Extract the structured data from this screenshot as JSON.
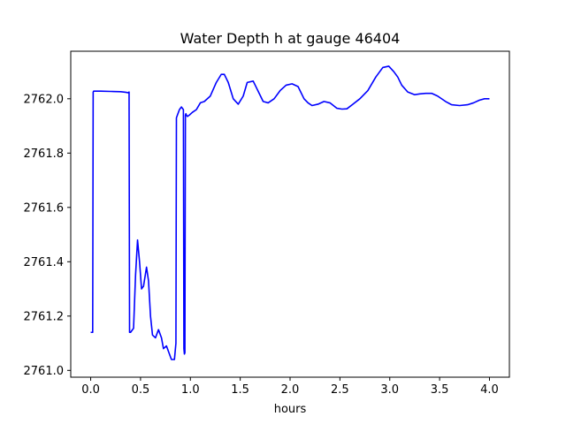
{
  "chart_data": {
    "type": "line",
    "title": "Water Depth h at gauge 46404",
    "xlabel": "hours",
    "ylabel": "",
    "xlim": [
      -0.2,
      4.2
    ],
    "ylim": [
      2760.975,
      2762.175
    ],
    "xticks": [
      0.0,
      0.5,
      1.0,
      1.5,
      2.0,
      2.5,
      3.0,
      3.5,
      4.0
    ],
    "xtick_labels": [
      "0.0",
      "0.5",
      "1.0",
      "1.5",
      "2.0",
      "2.5",
      "3.0",
      "3.5",
      "4.0"
    ],
    "yticks": [
      2761.0,
      2761.2,
      2761.4,
      2761.6,
      2761.8,
      2762.0
    ],
    "ytick_labels": [
      "2761.0",
      "2761.2",
      "2761.4",
      "2761.6",
      "2761.8",
      "2762.0"
    ],
    "grid": false,
    "series": [
      {
        "name": "h",
        "color": "#0000ff",
        "x": [
          0.0,
          0.02,
          0.025,
          0.03,
          0.1,
          0.2,
          0.3,
          0.35,
          0.38,
          0.385,
          0.39,
          0.4,
          0.43,
          0.45,
          0.47,
          0.49,
          0.51,
          0.53,
          0.56,
          0.58,
          0.6,
          0.62,
          0.65,
          0.68,
          0.71,
          0.73,
          0.76,
          0.79,
          0.81,
          0.84,
          0.855,
          0.86,
          0.87,
          0.89,
          0.91,
          0.93,
          0.935,
          0.94,
          0.945,
          0.95,
          0.955,
          0.96,
          0.97,
          0.99,
          1.02,
          1.06,
          1.1,
          1.14,
          1.2,
          1.26,
          1.31,
          1.34,
          1.38,
          1.43,
          1.48,
          1.53,
          1.57,
          1.63,
          1.69,
          1.73,
          1.78,
          1.84,
          1.9,
          1.96,
          2.02,
          2.08,
          2.14,
          2.18,
          2.22,
          2.28,
          2.34,
          2.4,
          2.47,
          2.52,
          2.57,
          2.63,
          2.7,
          2.78,
          2.86,
          2.93,
          2.99,
          3.04,
          3.08,
          3.12,
          3.18,
          3.25,
          3.3,
          3.36,
          3.42,
          3.48,
          3.56,
          3.62,
          3.7,
          3.78,
          3.84,
          3.9,
          3.95,
          4.0
        ],
        "y": [
          2761.14,
          2761.14,
          2762.025,
          2762.028,
          2762.028,
          2762.027,
          2762.026,
          2762.024,
          2762.022,
          2762.025,
          2761.14,
          2761.14,
          2761.155,
          2761.35,
          2761.48,
          2761.4,
          2761.3,
          2761.31,
          2761.38,
          2761.33,
          2761.2,
          2761.13,
          2761.12,
          2761.15,
          2761.12,
          2761.08,
          2761.09,
          2761.06,
          2761.04,
          2761.04,
          2761.1,
          2761.93,
          2761.94,
          2761.96,
          2761.97,
          2761.96,
          2761.08,
          2761.06,
          2761.065,
          2761.94,
          2761.945,
          2761.94,
          2761.935,
          2761.94,
          2761.95,
          2761.96,
          2761.985,
          2761.99,
          2762.01,
          2762.06,
          2762.09,
          2762.09,
          2762.06,
          2762.0,
          2761.98,
          2762.01,
          2762.06,
          2762.065,
          2762.02,
          2761.99,
          2761.985,
          2762.0,
          2762.03,
          2762.05,
          2762.055,
          2762.045,
          2762.0,
          2761.985,
          2761.975,
          2761.98,
          2761.99,
          2761.985,
          2761.965,
          2761.962,
          2761.963,
          2761.98,
          2762.0,
          2762.03,
          2762.08,
          2762.115,
          2762.12,
          2762.1,
          2762.08,
          2762.05,
          2762.025,
          2762.015,
          2762.018,
          2762.02,
          2762.02,
          2762.01,
          2761.99,
          2761.978,
          2761.975,
          2761.978,
          2761.985,
          2761.995,
          2762.0,
          2762.0
        ]
      }
    ]
  }
}
